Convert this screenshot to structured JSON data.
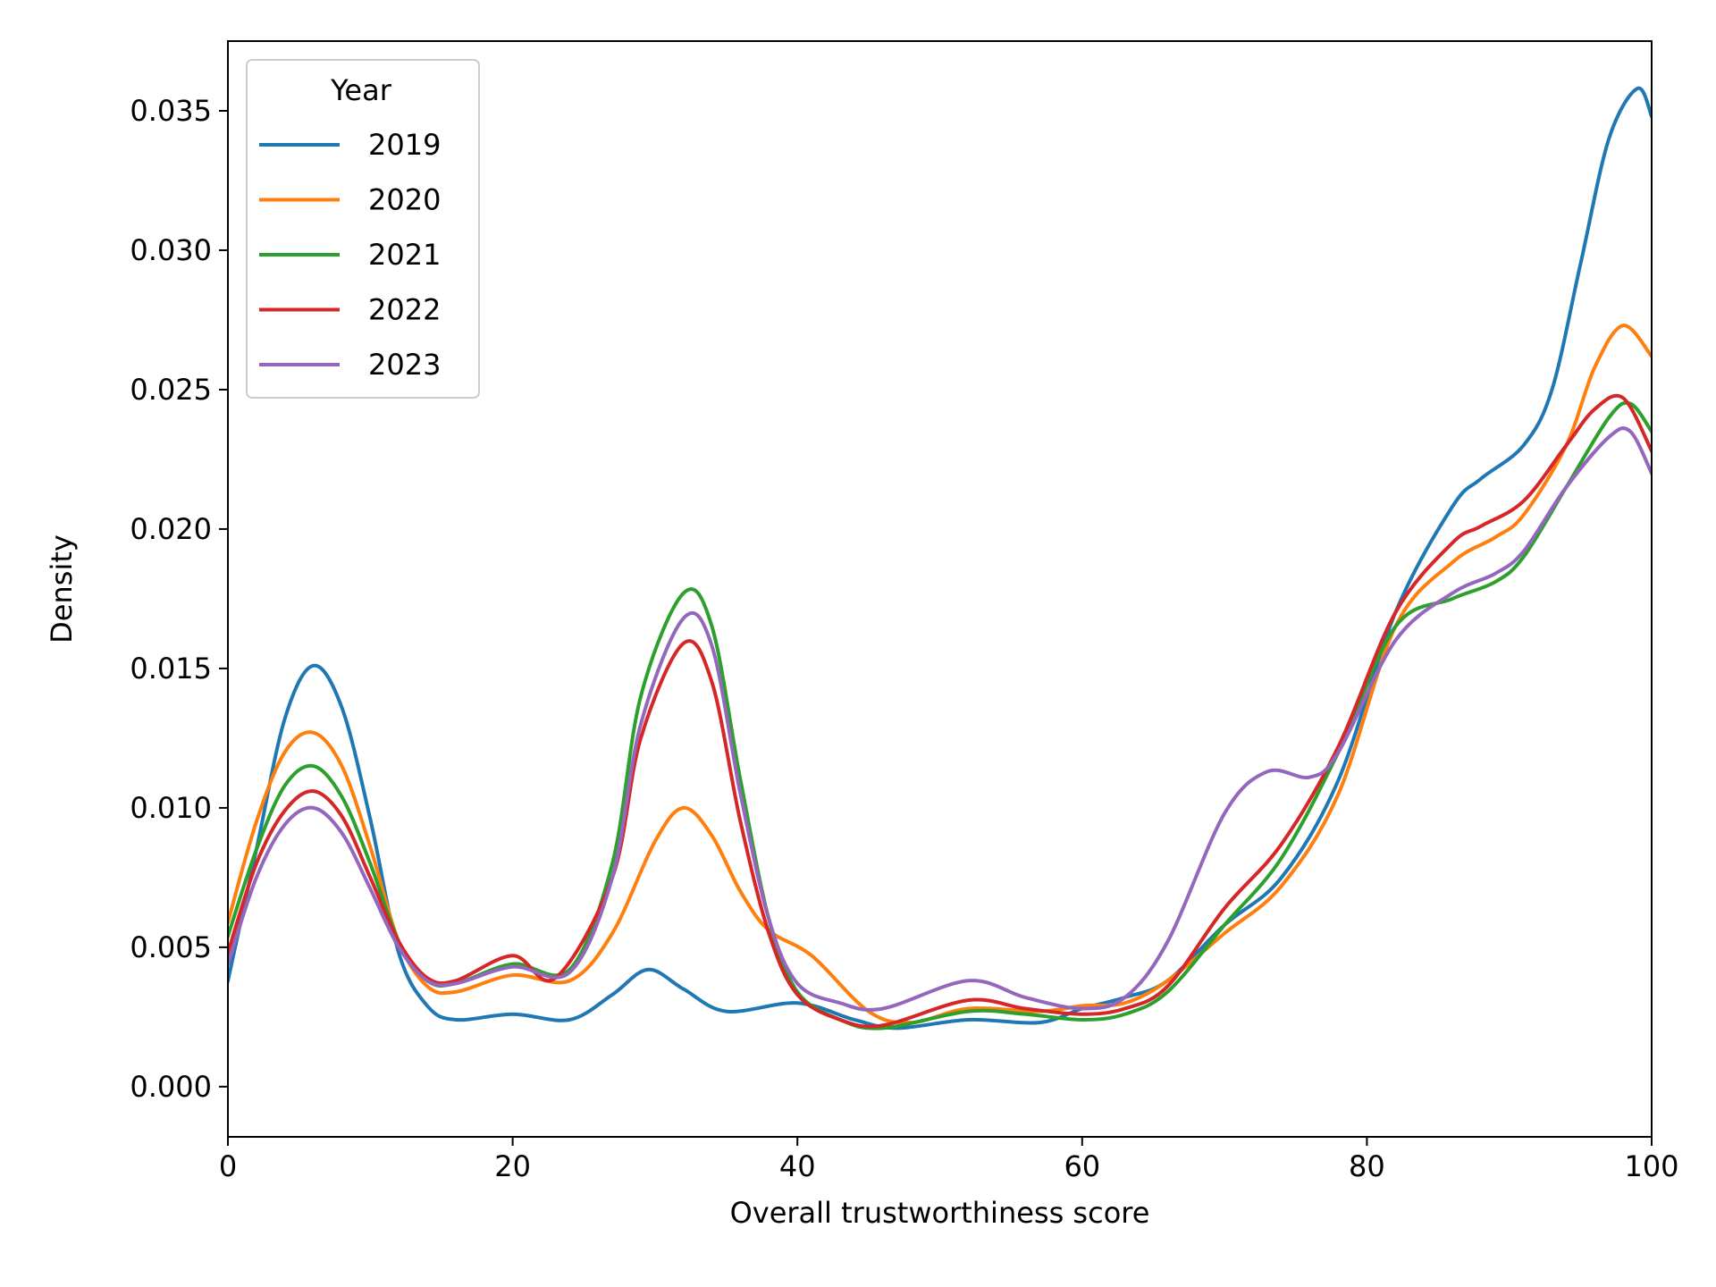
{
  "chart_data": {
    "type": "line",
    "xlabel": "Overall trustworthiness score",
    "ylabel": "Density",
    "xlim": [
      0,
      100
    ],
    "ylim": [
      -0.0018,
      0.0375
    ],
    "xticks": [
      "0",
      "20",
      "40",
      "60",
      "80",
      "100"
    ],
    "xtick_values": [
      0,
      20,
      40,
      60,
      80,
      100
    ],
    "yticks": [
      "0.000",
      "0.005",
      "0.010",
      "0.015",
      "0.020",
      "0.025",
      "0.030",
      "0.035"
    ],
    "ytick_values": [
      0,
      0.005,
      0.01,
      0.015,
      0.02,
      0.025,
      0.03,
      0.035
    ],
    "grid": false,
    "legend": {
      "title": "Year",
      "position": "top-left"
    },
    "series": [
      {
        "name": "2019",
        "color": "#1f77b4",
        "points": [
          [
            0,
            0.0038
          ],
          [
            2,
            0.0085
          ],
          [
            4,
            0.0132
          ],
          [
            6,
            0.0151
          ],
          [
            8,
            0.0136
          ],
          [
            10,
            0.0096
          ],
          [
            12,
            0.0048
          ],
          [
            14,
            0.0029
          ],
          [
            16,
            0.0024
          ],
          [
            20,
            0.0026
          ],
          [
            24,
            0.0024
          ],
          [
            27,
            0.0033
          ],
          [
            29.5,
            0.0042
          ],
          [
            32,
            0.0035
          ],
          [
            35,
            0.0027
          ],
          [
            40,
            0.003
          ],
          [
            44,
            0.0024
          ],
          [
            47,
            0.0021
          ],
          [
            52,
            0.0024
          ],
          [
            57,
            0.0023
          ],
          [
            60,
            0.0028
          ],
          [
            63,
            0.0032
          ],
          [
            66,
            0.0038
          ],
          [
            70,
            0.0058
          ],
          [
            74,
            0.0075
          ],
          [
            78,
            0.011
          ],
          [
            82,
            0.017
          ],
          [
            86,
            0.0208
          ],
          [
            88,
            0.0218
          ],
          [
            91,
            0.023
          ],
          [
            93,
            0.025
          ],
          [
            95,
            0.0295
          ],
          [
            97,
            0.034
          ],
          [
            99,
            0.0358
          ],
          [
            100,
            0.0348
          ]
        ]
      },
      {
        "name": "2020",
        "color": "#ff7f0e",
        "points": [
          [
            0,
            0.0059
          ],
          [
            2,
            0.0095
          ],
          [
            4,
            0.012
          ],
          [
            6,
            0.0127
          ],
          [
            8,
            0.0115
          ],
          [
            10,
            0.0086
          ],
          [
            12,
            0.0052
          ],
          [
            14,
            0.0036
          ],
          [
            16,
            0.0034
          ],
          [
            20,
            0.004
          ],
          [
            24,
            0.0038
          ],
          [
            27,
            0.0055
          ],
          [
            30,
            0.0088
          ],
          [
            32,
            0.01
          ],
          [
            34,
            0.009
          ],
          [
            36,
            0.007
          ],
          [
            38,
            0.0056
          ],
          [
            41,
            0.0047
          ],
          [
            45,
            0.0027
          ],
          [
            48,
            0.0023
          ],
          [
            52,
            0.0028
          ],
          [
            57,
            0.0027
          ],
          [
            60,
            0.0029
          ],
          [
            63,
            0.003
          ],
          [
            66,
            0.0038
          ],
          [
            70,
            0.0055
          ],
          [
            74,
            0.0072
          ],
          [
            78,
            0.0105
          ],
          [
            82,
            0.0165
          ],
          [
            86,
            0.0188
          ],
          [
            89,
            0.0197
          ],
          [
            91,
            0.0205
          ],
          [
            94,
            0.023
          ],
          [
            96,
            0.0258
          ],
          [
            98,
            0.0273
          ],
          [
            100,
            0.0262
          ]
        ]
      },
      {
        "name": "2021",
        "color": "#2ca02c",
        "points": [
          [
            0,
            0.0054
          ],
          [
            2,
            0.0085
          ],
          [
            4,
            0.0108
          ],
          [
            6,
            0.0115
          ],
          [
            8,
            0.0104
          ],
          [
            10,
            0.008
          ],
          [
            12,
            0.0052
          ],
          [
            14,
            0.0038
          ],
          [
            16,
            0.0037
          ],
          [
            20,
            0.0044
          ],
          [
            24,
            0.0042
          ],
          [
            27,
            0.008
          ],
          [
            29,
            0.014
          ],
          [
            32,
            0.0177
          ],
          [
            34,
            0.0165
          ],
          [
            36,
            0.011
          ],
          [
            38,
            0.006
          ],
          [
            40,
            0.0034
          ],
          [
            43,
            0.0024
          ],
          [
            46,
            0.0021
          ],
          [
            52,
            0.0027
          ],
          [
            56,
            0.0026
          ],
          [
            60,
            0.0024
          ],
          [
            63,
            0.0026
          ],
          [
            66,
            0.0034
          ],
          [
            70,
            0.0058
          ],
          [
            74,
            0.0082
          ],
          [
            78,
            0.012
          ],
          [
            82,
            0.0165
          ],
          [
            86,
            0.0175
          ],
          [
            89,
            0.0181
          ],
          [
            91,
            0.019
          ],
          [
            94,
            0.0215
          ],
          [
            97,
            0.024
          ],
          [
            98.5,
            0.0245
          ],
          [
            100,
            0.0235
          ]
        ]
      },
      {
        "name": "2022",
        "color": "#d62728",
        "points": [
          [
            0,
            0.0048
          ],
          [
            2,
            0.008
          ],
          [
            4,
            0.0099
          ],
          [
            6,
            0.0106
          ],
          [
            8,
            0.0097
          ],
          [
            10,
            0.0075
          ],
          [
            12,
            0.0052
          ],
          [
            14,
            0.0039
          ],
          [
            16,
            0.0038
          ],
          [
            20,
            0.0047
          ],
          [
            23,
            0.0039
          ],
          [
            27,
            0.0075
          ],
          [
            29,
            0.0125
          ],
          [
            32,
            0.0159
          ],
          [
            34,
            0.0145
          ],
          [
            36,
            0.0095
          ],
          [
            38,
            0.0055
          ],
          [
            40,
            0.0033
          ],
          [
            43,
            0.0024
          ],
          [
            46,
            0.0022
          ],
          [
            52,
            0.0031
          ],
          [
            56,
            0.0028
          ],
          [
            60,
            0.0026
          ],
          [
            63,
            0.0028
          ],
          [
            66,
            0.0036
          ],
          [
            70,
            0.0064
          ],
          [
            74,
            0.0087
          ],
          [
            78,
            0.0122
          ],
          [
            82,
            0.017
          ],
          [
            86,
            0.0195
          ],
          [
            88,
            0.0201
          ],
          [
            91,
            0.021
          ],
          [
            94,
            0.023
          ],
          [
            96,
            0.0243
          ],
          [
            98,
            0.0247
          ],
          [
            100,
            0.0228
          ]
        ]
      },
      {
        "name": "2023",
        "color": "#9467bd",
        "points": [
          [
            0,
            0.0044
          ],
          [
            2,
            0.0075
          ],
          [
            4,
            0.0094
          ],
          [
            6,
            0.01
          ],
          [
            8,
            0.0091
          ],
          [
            10,
            0.0071
          ],
          [
            12,
            0.005
          ],
          [
            14,
            0.0038
          ],
          [
            16,
            0.0037
          ],
          [
            20,
            0.0043
          ],
          [
            24,
            0.0041
          ],
          [
            27,
            0.0075
          ],
          [
            29,
            0.013
          ],
          [
            32,
            0.0168
          ],
          [
            34,
            0.0158
          ],
          [
            36,
            0.0105
          ],
          [
            38,
            0.006
          ],
          [
            40,
            0.0037
          ],
          [
            43,
            0.003
          ],
          [
            46,
            0.0028
          ],
          [
            52,
            0.0038
          ],
          [
            56,
            0.0032
          ],
          [
            60,
            0.0028
          ],
          [
            63,
            0.0032
          ],
          [
            66,
            0.0052
          ],
          [
            70,
            0.0098
          ],
          [
            73,
            0.0113
          ],
          [
            76,
            0.0111
          ],
          [
            78,
            0.012
          ],
          [
            82,
            0.016
          ],
          [
            86,
            0.0177
          ],
          [
            89,
            0.0184
          ],
          [
            91,
            0.0192
          ],
          [
            94,
            0.0215
          ],
          [
            97,
            0.0233
          ],
          [
            98.5,
            0.0235
          ],
          [
            100,
            0.022
          ]
        ]
      }
    ]
  }
}
